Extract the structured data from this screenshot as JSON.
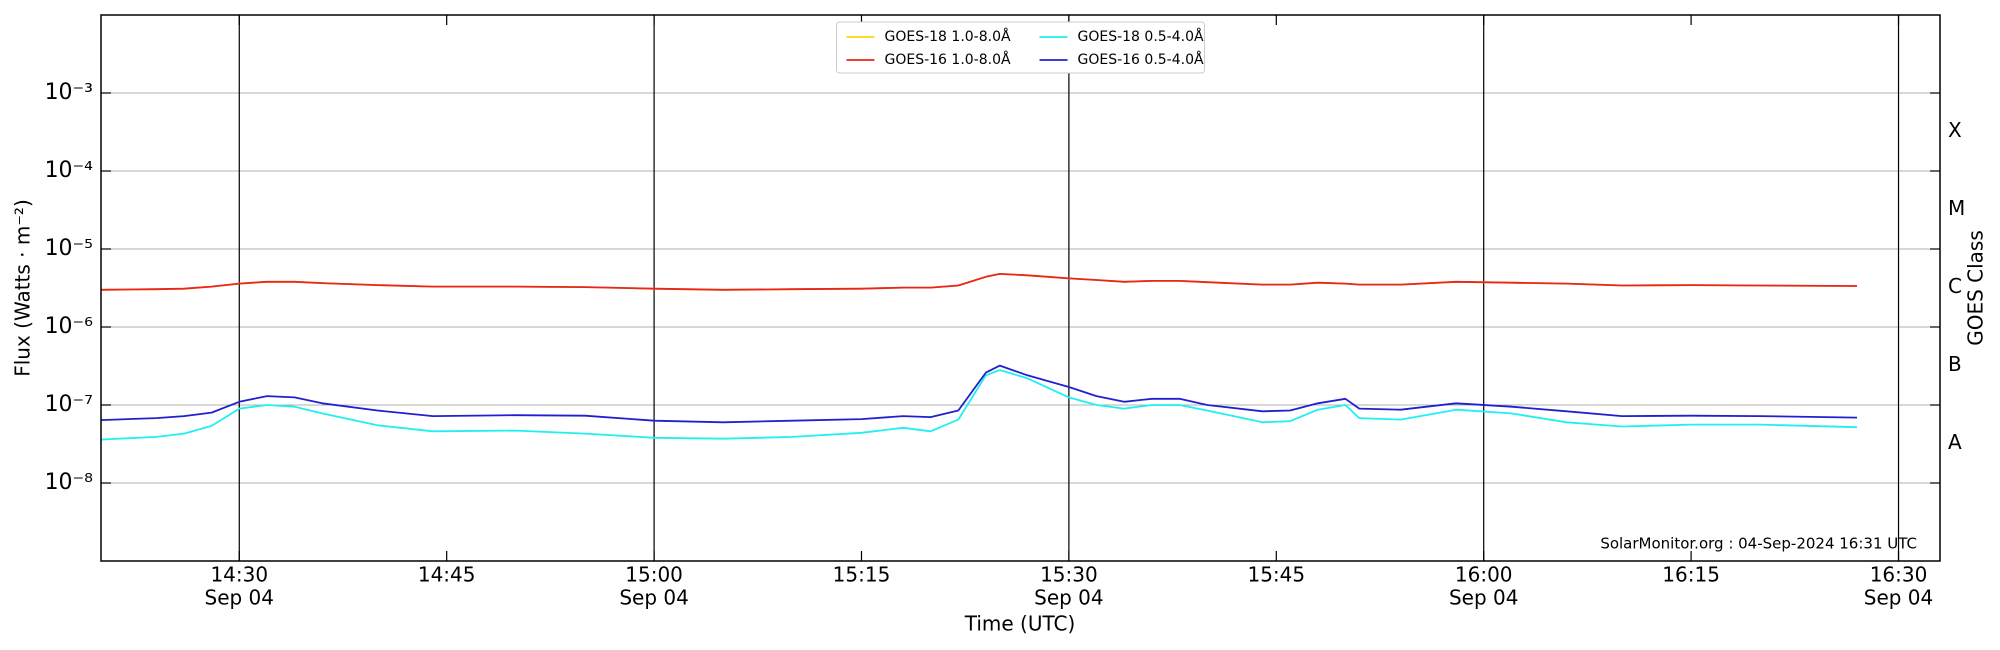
{
  "chart_data": {
    "type": "line",
    "xlabel": "Time (UTC)",
    "ylabel": "Flux (Watts · m⁻²)",
    "y2label": "GOES Class",
    "annotation": "SolarMonitor.org : 04-Sep-2024 16:31 UTC",
    "log_y": true,
    "grid": true,
    "legend": "upper center",
    "x": [
      "14:20",
      "14:24",
      "14:26",
      "14:28",
      "14:30",
      "14:32",
      "14:34",
      "14:36",
      "14:40",
      "14:44",
      "14:50",
      "14:55",
      "15:00",
      "15:05",
      "15:10",
      "15:15",
      "15:18",
      "15:20",
      "15:22",
      "15:24",
      "15:25",
      "15:27",
      "15:30",
      "15:32",
      "15:34",
      "15:36",
      "15:38",
      "15:40",
      "15:44",
      "15:46",
      "15:48",
      "15:50",
      "15:51",
      "15:54",
      "15:58",
      "16:02",
      "16:06",
      "16:10",
      "16:15",
      "16:20",
      "16:27"
    ],
    "series": [
      {
        "name": "GOES-18 1.0-8.0Å",
        "color": "#ffd700",
        "values": [
          3e-06,
          3.05e-06,
          3.1e-06,
          3.3e-06,
          3.6e-06,
          3.8e-06,
          3.8e-06,
          3.65e-06,
          3.45e-06,
          3.3e-06,
          3.3e-06,
          3.25e-06,
          3.1e-06,
          3e-06,
          3.05e-06,
          3.1e-06,
          3.2e-06,
          3.2e-06,
          3.4e-06,
          4.4e-06,
          4.8e-06,
          4.6e-06,
          4.2e-06,
          4e-06,
          3.8e-06,
          3.9e-06,
          3.9e-06,
          3.75e-06,
          3.5e-06,
          3.5e-06,
          3.7e-06,
          3.6e-06,
          3.5e-06,
          3.5e-06,
          3.8e-06,
          3.7e-06,
          3.6e-06,
          3.4e-06,
          3.45e-06,
          3.4e-06,
          3.35e-06
        ]
      },
      {
        "name": "GOES-16 1.0-8.0Å",
        "color": "#e8251f",
        "values": [
          3e-06,
          3.05e-06,
          3.1e-06,
          3.3e-06,
          3.6e-06,
          3.8e-06,
          3.8e-06,
          3.65e-06,
          3.45e-06,
          3.3e-06,
          3.3e-06,
          3.25e-06,
          3.1e-06,
          3e-06,
          3.05e-06,
          3.1e-06,
          3.2e-06,
          3.2e-06,
          3.4e-06,
          4.4e-06,
          4.8e-06,
          4.6e-06,
          4.2e-06,
          4e-06,
          3.8e-06,
          3.9e-06,
          3.9e-06,
          3.75e-06,
          3.5e-06,
          3.5e-06,
          3.7e-06,
          3.6e-06,
          3.5e-06,
          3.5e-06,
          3.8e-06,
          3.7e-06,
          3.6e-06,
          3.4e-06,
          3.45e-06,
          3.4e-06,
          3.35e-06
        ]
      },
      {
        "name": "GOES-18 0.5-4.0Å",
        "color": "#1ff0f0",
        "values": [
          3.6e-08,
          3.9e-08,
          4.3e-08,
          5.4e-08,
          9e-08,
          1e-07,
          9.5e-08,
          7.8e-08,
          5.5e-08,
          4.6e-08,
          4.7e-08,
          4.3e-08,
          3.8e-08,
          3.7e-08,
          3.9e-08,
          4.4e-08,
          5.1e-08,
          4.6e-08,
          6.5e-08,
          2.4e-07,
          2.8e-07,
          2.2e-07,
          1.25e-07,
          1e-07,
          9e-08,
          1e-07,
          1e-07,
          8.5e-08,
          6e-08,
          6.2e-08,
          8.7e-08,
          1e-07,
          6.8e-08,
          6.5e-08,
          8.7e-08,
          7.8e-08,
          6e-08,
          5.3e-08,
          5.6e-08,
          5.6e-08,
          5.2e-08
        ]
      },
      {
        "name": "GOES-16 0.5-4.0Å",
        "color": "#2020d0",
        "values": [
          6.4e-08,
          6.8e-08,
          7.2e-08,
          8e-08,
          1.1e-07,
          1.3e-07,
          1.25e-07,
          1.05e-07,
          8.5e-08,
          7.2e-08,
          7.4e-08,
          7.3e-08,
          6.3e-08,
          6e-08,
          6.3e-08,
          6.6e-08,
          7.2e-08,
          7e-08,
          8.5e-08,
          2.6e-07,
          3.2e-07,
          2.4e-07,
          1.7e-07,
          1.3e-07,
          1.1e-07,
          1.2e-07,
          1.2e-07,
          1e-07,
          8.3e-08,
          8.5e-08,
          1.05e-07,
          1.2e-07,
          9e-08,
          8.7e-08,
          1.05e-07,
          9.5e-08,
          8.3e-08,
          7.2e-08,
          7.3e-08,
          7.2e-08,
          6.9e-08
        ]
      }
    ],
    "xlim": [
      "14:20",
      "16:33"
    ],
    "xticks": [
      {
        "value": "14:30",
        "label": "14:30",
        "sublabel": "Sep 04"
      },
      {
        "value": "14:45",
        "label": "14:45"
      },
      {
        "value": "15:00",
        "label": "15:00",
        "sublabel": "Sep 04"
      },
      {
        "value": "15:15",
        "label": "15:15"
      },
      {
        "value": "15:30",
        "label": "15:30",
        "sublabel": "Sep 04"
      },
      {
        "value": "15:45",
        "label": "15:45"
      },
      {
        "value": "16:00",
        "label": "16:00",
        "sublabel": "Sep 04"
      },
      {
        "value": "16:15",
        "label": "16:15"
      },
      {
        "value": "16:30",
        "label": "16:30",
        "sublabel": "Sep 04"
      }
    ],
    "vlines": [
      "14:30",
      "15:00",
      "15:30",
      "16:00",
      "16:30"
    ],
    "ylim": [
      1e-09,
      0.01
    ],
    "yticks": [
      {
        "value": 0.001,
        "label": "10⁻³"
      },
      {
        "value": 0.0001,
        "label": "10⁻⁴"
      },
      {
        "value": 1e-05,
        "label": "10⁻⁵"
      },
      {
        "value": 1e-06,
        "label": "10⁻⁶"
      },
      {
        "value": 1e-07,
        "label": "10⁻⁷"
      },
      {
        "value": 1e-08,
        "label": "10⁻⁸"
      }
    ],
    "y2lim": [
      1e-09,
      0.01
    ],
    "y2ticks": [
      {
        "value": 3.2e-08,
        "label": "A"
      },
      {
        "value": 3.2e-07,
        "label": "B"
      },
      {
        "value": 3.2e-06,
        "label": "C"
      },
      {
        "value": 3.2e-05,
        "label": "M"
      },
      {
        "value": 0.00032,
        "label": "X"
      }
    ]
  }
}
